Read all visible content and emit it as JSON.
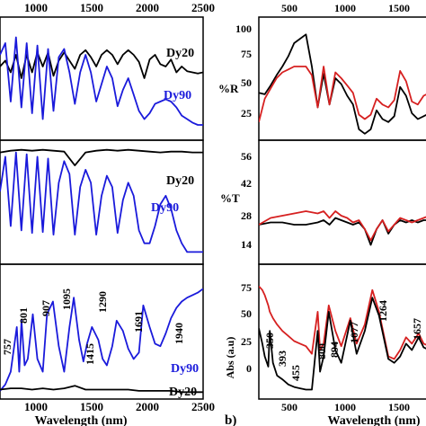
{
  "chart_data": [
    {
      "type": "line",
      "panel": "left-top",
      "xlabel": "",
      "top_ticks": [
        "1000",
        "1500",
        "2000",
        "2500"
      ],
      "x_range": [
        600,
        2500
      ],
      "series": [
        {
          "name": "Dy20",
          "color": "#000000",
          "x": [
            600,
            650,
            700,
            750,
            800,
            850,
            900,
            950,
            1000,
            1050,
            1100,
            1150,
            1200,
            1250,
            1300,
            1350,
            1400,
            1450,
            1500,
            1550,
            1600,
            1650,
            1700,
            1750,
            1800,
            1850,
            1900,
            1950,
            2000,
            2050,
            2100,
            2150,
            2200,
            2250,
            2300,
            2350,
            2400,
            2450,
            2500
          ],
          "y": [
            0.6,
            0.65,
            0.55,
            0.7,
            0.5,
            0.7,
            0.55,
            0.72,
            0.6,
            0.72,
            0.52,
            0.65,
            0.72,
            0.65,
            0.58,
            0.7,
            0.74,
            0.68,
            0.6,
            0.7,
            0.74,
            0.7,
            0.62,
            0.7,
            0.74,
            0.7,
            0.64,
            0.5,
            0.66,
            0.7,
            0.62,
            0.6,
            0.66,
            0.55,
            0.6,
            0.56,
            0.55,
            0.54,
            0.55
          ]
        },
        {
          "name": "Dy90",
          "color": "#1a1adb",
          "x": [
            600,
            650,
            700,
            750,
            800,
            850,
            900,
            950,
            1000,
            1050,
            1100,
            1150,
            1200,
            1250,
            1300,
            1350,
            1400,
            1450,
            1500,
            1550,
            1600,
            1650,
            1700,
            1750,
            1800,
            1850,
            1900,
            1950,
            2000,
            2050,
            2100,
            2150,
            2200,
            2250,
            2300,
            2350,
            2400,
            2450,
            2500
          ],
          "y": [
            0.7,
            0.8,
            0.3,
            0.85,
            0.25,
            0.8,
            0.2,
            0.78,
            0.15,
            0.75,
            0.22,
            0.68,
            0.75,
            0.55,
            0.28,
            0.55,
            0.7,
            0.55,
            0.3,
            0.45,
            0.6,
            0.5,
            0.26,
            0.4,
            0.5,
            0.36,
            0.22,
            0.15,
            0.2,
            0.28,
            0.3,
            0.32,
            0.3,
            0.25,
            0.18,
            0.15,
            0.12,
            0.1,
            0.1
          ]
        }
      ],
      "labels": [
        "Dy20",
        "Dy90"
      ]
    },
    {
      "type": "line",
      "panel": "left-middle",
      "series": [
        {
          "name": "Dy20",
          "color": "#000000",
          "x": [
            600,
            700,
            800,
            900,
            1000,
            1100,
            1200,
            1300,
            1400,
            1500,
            1600,
            1700,
            1800,
            1900,
            2000,
            2100,
            2200,
            2300,
            2400,
            2500
          ],
          "y": [
            0.95,
            0.97,
            0.98,
            0.97,
            0.98,
            0.97,
            0.96,
            0.8,
            0.95,
            0.97,
            0.98,
            0.97,
            0.98,
            0.97,
            0.96,
            0.95,
            0.96,
            0.96,
            0.95,
            0.95
          ]
        },
        {
          "name": "Dy90",
          "color": "#1a1adb",
          "x": [
            600,
            650,
            700,
            750,
            800,
            850,
            900,
            950,
            1000,
            1050,
            1100,
            1150,
            1200,
            1250,
            1300,
            1350,
            1400,
            1450,
            1500,
            1550,
            1600,
            1650,
            1700,
            1750,
            1800,
            1850,
            1900,
            1950,
            2000,
            2050,
            2100,
            2150,
            2200,
            2250,
            2300,
            2350,
            2400,
            2450,
            2500
          ],
          "y": [
            0.5,
            0.9,
            0.1,
            0.95,
            0.05,
            0.93,
            0.02,
            0.9,
            0.03,
            0.88,
            0.0,
            0.6,
            0.85,
            0.7,
            0.0,
            0.55,
            0.75,
            0.6,
            0.0,
            0.45,
            0.68,
            0.55,
            0.02,
            0.4,
            0.6,
            0.45,
            0.05,
            -0.1,
            -0.1,
            0.1,
            0.35,
            0.45,
            0.3,
            0.05,
            -0.1,
            -0.2,
            -0.2,
            -0.2,
            -0.2
          ]
        }
      ],
      "labels": [
        "Dy20",
        "Dy90"
      ]
    },
    {
      "type": "line",
      "panel": "left-bottom",
      "xlabel": "Wavelength (nm)",
      "bottom_ticks": [
        "1000",
        "1500",
        "2000",
        "2500"
      ],
      "series": [
        {
          "name": "Dy90",
          "color": "#1a1adb",
          "x": [
            600,
            650,
            700,
            757,
            780,
            801,
            830,
            860,
            907,
            950,
            1000,
            1040,
            1095,
            1150,
            1200,
            1250,
            1290,
            1340,
            1380,
            1415,
            1460,
            1520,
            1560,
            1600,
            1650,
            1691,
            1750,
            1800,
            1850,
            1900,
            1940,
            2000,
            2050,
            2100,
            2150,
            2200,
            2250,
            2300,
            2350,
            2400,
            2450,
            2500
          ],
          "y": [
            0.05,
            0.1,
            0.2,
            0.55,
            0.2,
            0.6,
            0.25,
            0.3,
            0.65,
            0.3,
            0.2,
            0.65,
            0.75,
            0.4,
            0.2,
            0.55,
            0.78,
            0.45,
            0.28,
            0.42,
            0.55,
            0.45,
            0.3,
            0.25,
            0.4,
            0.6,
            0.52,
            0.38,
            0.3,
            0.35,
            0.72,
            0.55,
            0.42,
            0.4,
            0.5,
            0.62,
            0.7,
            0.75,
            0.78,
            0.8,
            0.82,
            0.85
          ]
        },
        {
          "name": "Dy20",
          "color": "#000000",
          "x": [
            600,
            700,
            800,
            900,
            1000,
            1100,
            1200,
            1300,
            1400,
            1500,
            1600,
            1700,
            1800,
            1900,
            2000,
            2100,
            2200,
            2300,
            2400,
            2500
          ],
          "y": [
            0.06,
            0.07,
            0.07,
            0.06,
            0.07,
            0.06,
            0.07,
            0.09,
            0.06,
            0.06,
            0.06,
            0.06,
            0.06,
            0.05,
            0.05,
            0.05,
            0.05,
            0.04,
            0.04,
            0.04
          ]
        }
      ],
      "annotations": [
        "757",
        "801",
        "907",
        "1095",
        "1290",
        "1415",
        "1691",
        "1940",
        "Dy90",
        "Dy20"
      ]
    },
    {
      "type": "line",
      "panel": "right-top",
      "ylabel": "%R",
      "top_ticks": [
        "500",
        "1000",
        "1500"
      ],
      "x_range": [
        300,
        1750
      ],
      "y_ticks": [
        "100",
        "75",
        "50",
        "25"
      ],
      "y_range": [
        20,
        100
      ],
      "series": [
        {
          "name": "black",
          "color": "#000000",
          "x": [
            300,
            350,
            400,
            450,
            500,
            550,
            600,
            650,
            700,
            750,
            800,
            850,
            900,
            950,
            1000,
            1050,
            1100,
            1150,
            1200,
            1250,
            1300,
            1350,
            1400,
            1450,
            1500,
            1550,
            1600,
            1650,
            1700,
            1750
          ],
          "y": [
            50,
            49,
            55,
            62,
            68,
            75,
            84,
            87,
            90,
            68,
            40,
            63,
            42,
            60,
            56,
            48,
            42,
            25,
            22,
            25,
            38,
            32,
            30,
            34,
            54,
            48,
            36,
            32,
            34,
            36
          ]
        },
        {
          "name": "red",
          "color": "#d62020",
          "x": [
            300,
            350,
            400,
            450,
            500,
            550,
            600,
            650,
            700,
            750,
            800,
            850,
            900,
            950,
            1000,
            1050,
            1100,
            1150,
            1200,
            1250,
            1300,
            1350,
            1400,
            1450,
            1500,
            1550,
            1600,
            1650,
            1700,
            1750
          ],
          "y": [
            30,
            46,
            53,
            60,
            64,
            66,
            68,
            68,
            68,
            62,
            40,
            68,
            42,
            64,
            60,
            55,
            50,
            35,
            32,
            35,
            46,
            42,
            40,
            45,
            65,
            58,
            44,
            42,
            48,
            50
          ]
        }
      ]
    },
    {
      "type": "line",
      "panel": "right-middle",
      "ylabel": "%T",
      "y_ticks": [
        "56",
        "42",
        "28",
        "14"
      ],
      "y_range": [
        8,
        60
      ],
      "series": [
        {
          "name": "black",
          "color": "#000000",
          "x": [
            300,
            400,
            500,
            600,
            700,
            800,
            850,
            900,
            950,
            1000,
            1050,
            1100,
            1150,
            1200,
            1250,
            1300,
            1350,
            1400,
            1450,
            1500,
            1550,
            1600,
            1650,
            1700,
            1750
          ],
          "y": [
            24,
            25,
            25,
            24,
            24,
            25,
            26,
            24,
            27,
            26,
            25,
            24,
            25,
            22,
            15,
            22,
            26,
            20,
            24,
            26,
            25,
            26,
            25,
            26,
            26
          ]
        },
        {
          "name": "red",
          "color": "#d62020",
          "x": [
            300,
            400,
            500,
            600,
            700,
            800,
            850,
            900,
            950,
            1000,
            1050,
            1100,
            1150,
            1200,
            1250,
            1300,
            1350,
            1400,
            1450,
            1500,
            1550,
            1600,
            1650,
            1700,
            1750
          ],
          "y": [
            24,
            27,
            28,
            29,
            30,
            29,
            30,
            27,
            30,
            28,
            27,
            25,
            26,
            22,
            17,
            22,
            26,
            21,
            24,
            27,
            26,
            25,
            26,
            27,
            28
          ]
        }
      ]
    },
    {
      "type": "line",
      "panel": "right-bottom",
      "ylabel": "Abs (a.u)",
      "xlabel": "Wavelength (nm)",
      "bottom_ticks": [
        "500",
        "1000",
        "1500"
      ],
      "y_ticks": [
        "75",
        "50",
        "25",
        "0"
      ],
      "y_range": [
        -12,
        88
      ],
      "series": [
        {
          "name": "red",
          "color": "#d62020",
          "x": [
            300,
            330,
            350,
            380,
            393,
            420,
            455,
            500,
            550,
            600,
            650,
            700,
            750,
            800,
            820,
            850,
            894,
            950,
            1000,
            1077,
            1130,
            1200,
            1264,
            1320,
            1400,
            1450,
            1500,
            1550,
            1600,
            1657,
            1700,
            1750
          ],
          "y": [
            75,
            72,
            68,
            60,
            55,
            50,
            45,
            40,
            36,
            32,
            30,
            28,
            22,
            55,
            25,
            30,
            60,
            40,
            28,
            50,
            30,
            45,
            72,
            55,
            20,
            18,
            25,
            35,
            30,
            38,
            30,
            28
          ]
        },
        {
          "name": "black",
          "color": "#000000",
          "x": [
            300,
            330,
            350,
            380,
            393,
            420,
            455,
            500,
            550,
            600,
            650,
            700,
            750,
            800,
            820,
            850,
            894,
            950,
            1000,
            1077,
            1130,
            1200,
            1264,
            1320,
            1400,
            1450,
            1500,
            1550,
            1600,
            1657,
            1700,
            1750
          ],
          "y": [
            42,
            30,
            20,
            12,
            40,
            15,
            5,
            2,
            -2,
            -4,
            -5,
            -6,
            -6,
            40,
            8,
            20,
            55,
            25,
            15,
            48,
            22,
            40,
            66,
            52,
            18,
            15,
            20,
            30,
            25,
            35,
            27,
            25
          ]
        }
      ],
      "annotations": [
        "350",
        "393",
        "455",
        "800",
        "894",
        "1077",
        "1264",
        "1657"
      ]
    }
  ],
  "panel_label_b": "b)"
}
